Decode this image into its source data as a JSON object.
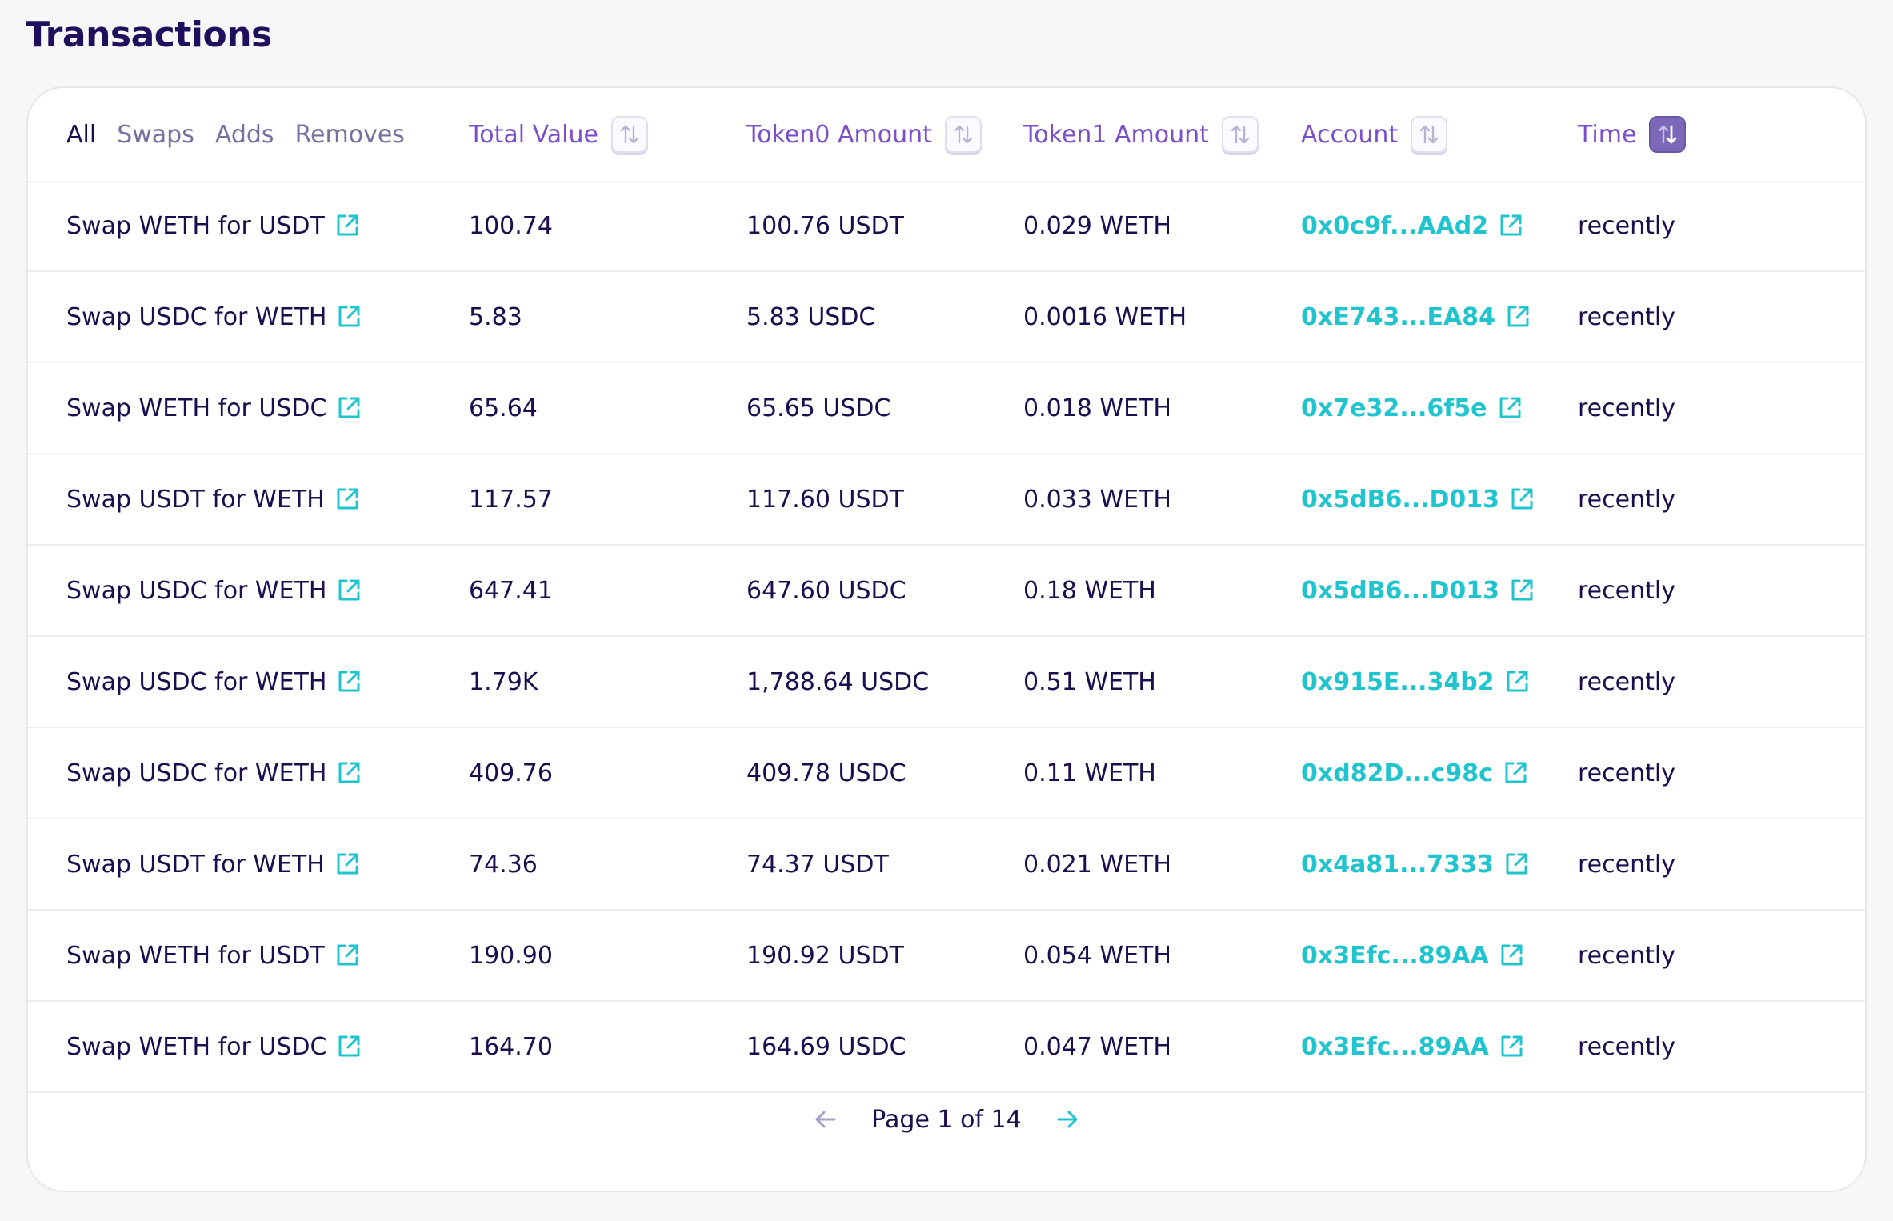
{
  "page": {
    "title": "Transactions"
  },
  "filters": [
    {
      "label": "All",
      "active": true
    },
    {
      "label": "Swaps",
      "active": false
    },
    {
      "label": "Adds",
      "active": false
    },
    {
      "label": "Removes",
      "active": false
    }
  ],
  "columns": {
    "total_value": "Total Value",
    "token0_amount": "Token0 Amount",
    "token1_amount": "Token1 Amount",
    "account": "Account",
    "time": "Time"
  },
  "sort": {
    "active_column": "time",
    "direction": "descending"
  },
  "rows": [
    {
      "action": "Swap WETH for USDT",
      "total_value": "100.74",
      "token0": "100.76 USDT",
      "token1": "0.029 WETH",
      "account": "0x0c9f...AAd2",
      "time": "recently"
    },
    {
      "action": "Swap USDC for WETH",
      "total_value": "5.83",
      "token0": "5.83 USDC",
      "token1": "0.0016 WETH",
      "account": "0xE743...EA84",
      "time": "recently"
    },
    {
      "action": "Swap WETH for USDC",
      "total_value": "65.64",
      "token0": "65.65 USDC",
      "token1": "0.018 WETH",
      "account": "0x7e32...6f5e",
      "time": "recently"
    },
    {
      "action": "Swap USDT for WETH",
      "total_value": "117.57",
      "token0": "117.60 USDT",
      "token1": "0.033 WETH",
      "account": "0x5dB6...D013",
      "time": "recently"
    },
    {
      "action": "Swap USDC for WETH",
      "total_value": "647.41",
      "token0": "647.60 USDC",
      "token1": "0.18 WETH",
      "account": "0x5dB6...D013",
      "time": "recently"
    },
    {
      "action": "Swap USDC for WETH",
      "total_value": "1.79K",
      "token0": "1,788.64 USDC",
      "token1": "0.51 WETH",
      "account": "0x915E...34b2",
      "time": "recently"
    },
    {
      "action": "Swap USDC for WETH",
      "total_value": "409.76",
      "token0": "409.78 USDC",
      "token1": "0.11 WETH",
      "account": "0xd82D...c98c",
      "time": "recently"
    },
    {
      "action": "Swap USDT for WETH",
      "total_value": "74.36",
      "token0": "74.37 USDT",
      "token1": "0.021 WETH",
      "account": "0x4a81...7333",
      "time": "recently"
    },
    {
      "action": "Swap WETH for USDT",
      "total_value": "190.90",
      "token0": "190.92 USDT",
      "token1": "0.054 WETH",
      "account": "0x3Efc...89AA",
      "time": "recently"
    },
    {
      "action": "Swap WETH for USDC",
      "total_value": "164.70",
      "token0": "164.69 USDC",
      "token1": "0.047 WETH",
      "account": "0x3Efc...89AA",
      "time": "recently"
    }
  ],
  "pagination": {
    "label": "Page 1 of 14",
    "current": 1,
    "total": 14
  },
  "icons": {
    "external_link": "external-link-icon",
    "sort": "sort-arrows-icon",
    "prev": "arrow-left-icon",
    "next": "arrow-right-icon"
  },
  "colors": {
    "title": "#1f0f5c",
    "text": "#1b0d4e",
    "column_header": "#7b4fc9",
    "inactive_tab": "#7a6e9f",
    "link": "#1fc4cf",
    "active_sort_bg": "#7b68b8",
    "prev_arrow_disabled": "#a89fc9"
  }
}
